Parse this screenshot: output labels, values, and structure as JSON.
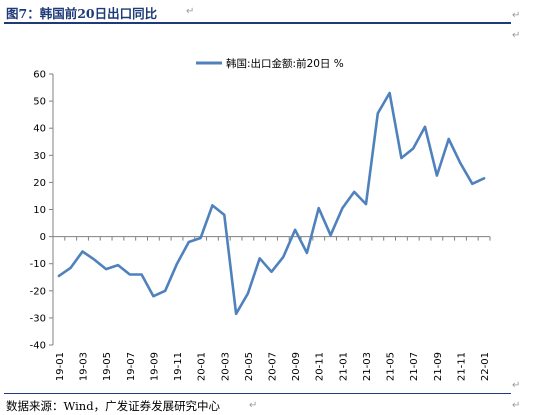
{
  "figure": {
    "title": "图7：韩国前20日出口同比",
    "source": "数据来源：Wind，广发证券发展研究中心",
    "para_mark": "↵"
  },
  "chart_data": {
    "type": "line",
    "legend_position": "top-center",
    "series": [
      {
        "name": "韩国:出口金额:前20日 %",
        "color": "#4f81bd",
        "values": [
          -14.5,
          -11.5,
          -5.5,
          -8.5,
          -12,
          -10.5,
          -14,
          -14,
          -22,
          -20,
          -10,
          -2,
          -0.5,
          11.5,
          8,
          -28.5,
          -21,
          -8,
          -13,
          -7.5,
          2.5,
          -6,
          10.5,
          0.5,
          10.5,
          16.5,
          12,
          45.5,
          53,
          29,
          32.5,
          40.5,
          22.5,
          36,
          27,
          19.5,
          21.5
        ]
      }
    ],
    "x_start_label": "19-01",
    "x_tick_labels": [
      "19-01",
      "19-03",
      "19-05",
      "19-07",
      "19-09",
      "19-11",
      "20-01",
      "20-03",
      "20-05",
      "20-07",
      "20-09",
      "20-11",
      "21-01",
      "21-03",
      "21-05",
      "21-07",
      "21-09",
      "21-11",
      "22-01"
    ],
    "y_ticks": [
      -40,
      -30,
      -20,
      -10,
      0,
      10,
      20,
      30,
      40,
      50,
      60
    ],
    "ylim": [
      -40,
      60
    ],
    "grid": false
  }
}
